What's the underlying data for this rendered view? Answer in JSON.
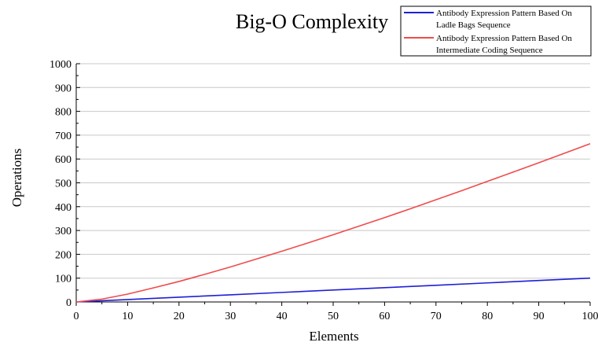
{
  "chart_data": {
    "type": "line",
    "title": "Big-O Complexity",
    "xlabel": "Elements",
    "ylabel": "Operations",
    "xlim": [
      0,
      100
    ],
    "ylim": [
      0,
      1000
    ],
    "xticks": [
      0,
      10,
      20,
      30,
      40,
      50,
      60,
      70,
      80,
      90,
      100
    ],
    "yticks": [
      0,
      100,
      200,
      300,
      400,
      500,
      600,
      700,
      800,
      900,
      1000
    ],
    "grid": "horizontal",
    "legend_position": "top-right",
    "series": [
      {
        "name": "Antibody Expression Pattern Based On Ladle Bags Sequence",
        "legend_lines": [
          "Antibody Expression Pattern Based On",
          "Ladle Bags Sequence"
        ],
        "color": "#1f1fd6",
        "x": [
          0,
          10,
          20,
          30,
          40,
          50,
          60,
          70,
          80,
          90,
          100
        ],
        "y": [
          0,
          10,
          20,
          30,
          40,
          50,
          60,
          70,
          80,
          90,
          100
        ]
      },
      {
        "name": "Antibody Expression Pattern Based On Intermediate Coding Sequence",
        "legend_lines": [
          "Antibody Expression Pattern Based On",
          "Intermediate Coding Sequence"
        ],
        "color": "#f04b4b",
        "x": [
          0,
          5,
          10,
          15,
          20,
          25,
          30,
          35,
          40,
          45,
          50,
          55,
          60,
          65,
          70,
          75,
          80,
          85,
          90,
          95,
          100
        ],
        "y": [
          0,
          12,
          33,
          59,
          86,
          116,
          147,
          180,
          213,
          247,
          282,
          318,
          354,
          391,
          429,
          467,
          506,
          545,
          584,
          624,
          664
        ]
      }
    ]
  }
}
